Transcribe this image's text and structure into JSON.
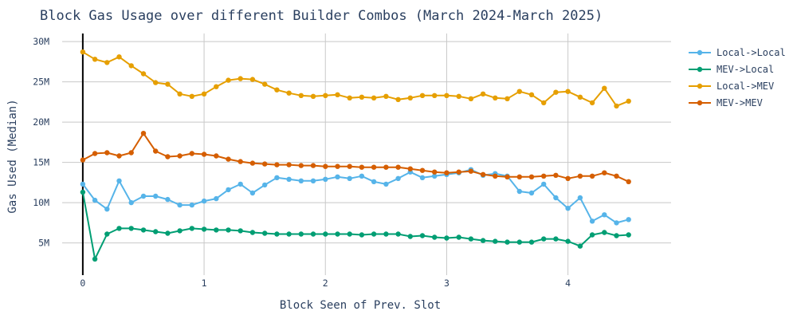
{
  "chart_data": {
    "type": "line",
    "title": "Block Gas Usage over different Builder Combos (March 2024-March 2025)",
    "xlabel": "Block Seen of Prev. Slot",
    "ylabel": "Gas Used (Median)",
    "xlim": [
      -0.17,
      4.85
    ],
    "ylim": [
      1000000,
      31000000
    ],
    "xticks": [
      {
        "value": 0,
        "label": "0"
      },
      {
        "value": 1,
        "label": "1"
      },
      {
        "value": 2,
        "label": "2"
      },
      {
        "value": 3,
        "label": "3"
      },
      {
        "value": 4,
        "label": "4"
      }
    ],
    "yticks": [
      {
        "value": 5000000,
        "label": "5M"
      },
      {
        "value": 10000000,
        "label": "10M"
      },
      {
        "value": 15000000,
        "label": "15M"
      },
      {
        "value": 20000000,
        "label": "20M"
      },
      {
        "value": 25000000,
        "label": "25M"
      },
      {
        "value": 30000000,
        "label": "30M"
      }
    ],
    "vertical_reference_line_x": 0,
    "grid": true,
    "legend_position": "right",
    "x": [
      0.0,
      0.1,
      0.2,
      0.3,
      0.4,
      0.5,
      0.6,
      0.7,
      0.8,
      0.9,
      1.0,
      1.1,
      1.2,
      1.3,
      1.4,
      1.5,
      1.6,
      1.7,
      1.8,
      1.9,
      2.0,
      2.1,
      2.2,
      2.3,
      2.4,
      2.5,
      2.6,
      2.7,
      2.8,
      2.9,
      3.0,
      3.1,
      3.2,
      3.3,
      3.4,
      3.5,
      3.6,
      3.7,
      3.8,
      3.9,
      4.0,
      4.1,
      4.2,
      4.3,
      4.4,
      4.5
    ],
    "series": [
      {
        "name": "Local->Local",
        "color": "#56b4e9",
        "values": [
          12.3,
          10.3,
          9.2,
          12.7,
          10.0,
          10.8,
          10.8,
          10.4,
          9.7,
          9.7,
          10.2,
          10.5,
          11.6,
          12.3,
          11.2,
          12.2,
          13.1,
          12.9,
          12.7,
          12.7,
          12.9,
          13.2,
          13.0,
          13.3,
          12.6,
          12.3,
          13.0,
          13.8,
          13.1,
          13.3,
          13.5,
          13.7,
          14.1,
          13.4,
          13.6,
          13.3,
          11.4,
          11.2,
          12.3,
          10.6,
          9.3,
          10.6,
          7.7,
          8.5,
          7.5,
          7.9
        ]
      },
      {
        "name": "MEV->Local",
        "color": "#009e73",
        "values": [
          11.3,
          3.0,
          6.1,
          6.8,
          6.8,
          6.6,
          6.4,
          6.2,
          6.5,
          6.8,
          6.7,
          6.6,
          6.6,
          6.5,
          6.3,
          6.2,
          6.1,
          6.1,
          6.1,
          6.1,
          6.1,
          6.1,
          6.1,
          6.0,
          6.1,
          6.1,
          6.1,
          5.8,
          5.9,
          5.7,
          5.6,
          5.7,
          5.5,
          5.3,
          5.2,
          5.1,
          5.1,
          5.1,
          5.5,
          5.5,
          5.2,
          4.6,
          6.0,
          6.3,
          5.9,
          6.0
        ]
      },
      {
        "name": "Local->MEV",
        "color": "#e69f00",
        "values": [
          28.7,
          27.8,
          27.4,
          28.1,
          27.0,
          26.0,
          24.9,
          24.7,
          23.5,
          23.2,
          23.5,
          24.4,
          25.2,
          25.4,
          25.3,
          24.7,
          24.0,
          23.6,
          23.3,
          23.2,
          23.3,
          23.4,
          23.0,
          23.1,
          23.0,
          23.2,
          22.8,
          23.0,
          23.3,
          23.3,
          23.3,
          23.2,
          22.9,
          23.5,
          23.0,
          22.9,
          23.8,
          23.4,
          22.4,
          23.7,
          23.8,
          23.1,
          22.4,
          24.2,
          22.0,
          22.6
        ]
      },
      {
        "name": "MEV->MEV",
        "color": "#d55e00",
        "values": [
          15.3,
          16.1,
          16.2,
          15.8,
          16.2,
          18.6,
          16.4,
          15.7,
          15.8,
          16.1,
          16.0,
          15.8,
          15.4,
          15.1,
          14.9,
          14.8,
          14.7,
          14.7,
          14.6,
          14.6,
          14.5,
          14.5,
          14.5,
          14.4,
          14.4,
          14.4,
          14.4,
          14.2,
          14.0,
          13.8,
          13.7,
          13.8,
          13.9,
          13.5,
          13.3,
          13.2,
          13.2,
          13.2,
          13.3,
          13.4,
          13.0,
          13.3,
          13.3,
          13.7,
          13.3,
          12.6
        ]
      }
    ]
  }
}
